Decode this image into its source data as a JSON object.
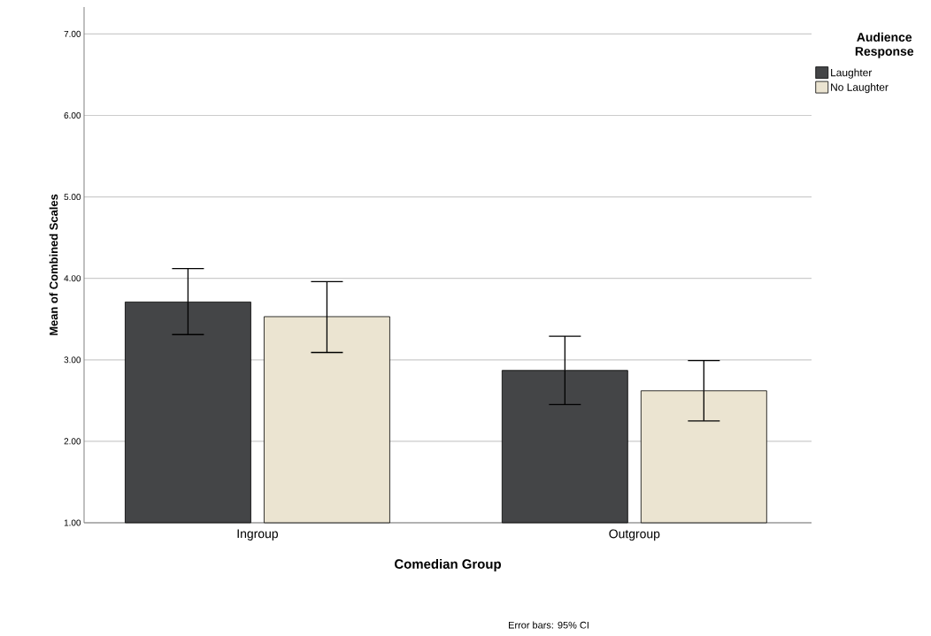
{
  "chart_data": {
    "type": "bar",
    "xlabel": "Comedian Group",
    "ylabel": "Mean of Combined Scales",
    "legend_title": "Audience Response",
    "categories": [
      "Ingroup",
      "Outgroup"
    ],
    "series": [
      {
        "name": "Laughter",
        "color": "#444547",
        "values": [
          3.71,
          2.87
        ],
        "errors": [
          [
            3.31,
            4.12
          ],
          [
            2.45,
            3.29
          ]
        ]
      },
      {
        "name": "No Laughter",
        "color": "#ebe4d1",
        "values": [
          3.53,
          2.62
        ],
        "errors": [
          [
            3.09,
            3.96
          ],
          [
            2.25,
            2.99
          ]
        ]
      }
    ],
    "ylim": [
      1.0,
      7.33
    ],
    "yticks": [
      {
        "value": 1,
        "label": "1.00"
      },
      {
        "value": 2,
        "label": "2.00"
      },
      {
        "value": 3,
        "label": "3.00"
      },
      {
        "value": 4,
        "label": "4.00"
      },
      {
        "value": 5,
        "label": "5.00"
      },
      {
        "value": 6,
        "label": "6.00"
      },
      {
        "value": 7,
        "label": "7.00"
      }
    ],
    "grid": "y",
    "legend": "top right",
    "annotations": [
      "Error bars: 95% CI"
    ]
  }
}
